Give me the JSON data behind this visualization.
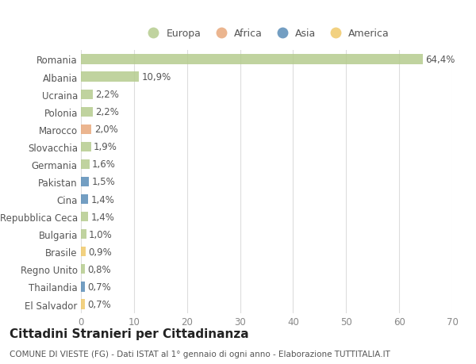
{
  "countries": [
    "Romania",
    "Albania",
    "Ucraina",
    "Polonia",
    "Marocco",
    "Slovacchia",
    "Germania",
    "Pakistan",
    "Cina",
    "Repubblica Ceca",
    "Bulgaria",
    "Brasile",
    "Regno Unito",
    "Thailandia",
    "El Salvador"
  ],
  "values": [
    64.4,
    10.9,
    2.2,
    2.2,
    2.0,
    1.9,
    1.6,
    1.5,
    1.4,
    1.4,
    1.0,
    0.9,
    0.8,
    0.7,
    0.7
  ],
  "labels": [
    "64,4%",
    "10,9%",
    "2,2%",
    "2,2%",
    "2,0%",
    "1,9%",
    "1,6%",
    "1,5%",
    "1,4%",
    "1,4%",
    "1,0%",
    "0,9%",
    "0,8%",
    "0,7%",
    "0,7%"
  ],
  "continents": [
    "Europa",
    "Europa",
    "Europa",
    "Europa",
    "Africa",
    "Europa",
    "Europa",
    "Asia",
    "Asia",
    "Europa",
    "Europa",
    "America",
    "Europa",
    "Asia",
    "America"
  ],
  "continent_colors": {
    "Europa": "#b5cc8e",
    "Africa": "#e8a87c",
    "Asia": "#5b8db8",
    "America": "#f0c96a"
  },
  "legend_order": [
    "Europa",
    "Africa",
    "Asia",
    "America"
  ],
  "title": "Cittadini Stranieri per Cittadinanza",
  "subtitle": "COMUNE DI VIESTE (FG) - Dati ISTAT al 1° gennaio di ogni anno - Elaborazione TUTTITALIA.IT",
  "xlim": [
    0,
    70
  ],
  "xticks": [
    0,
    10,
    20,
    30,
    40,
    50,
    60,
    70
  ],
  "bg_color": "#ffffff",
  "plot_bg_color": "#ffffff",
  "grid_color": "#dddddd",
  "bar_height": 0.55,
  "label_fontsize": 8.5,
  "tick_fontsize": 8.5,
  "title_fontsize": 11,
  "subtitle_fontsize": 7.5,
  "legend_fontsize": 9
}
